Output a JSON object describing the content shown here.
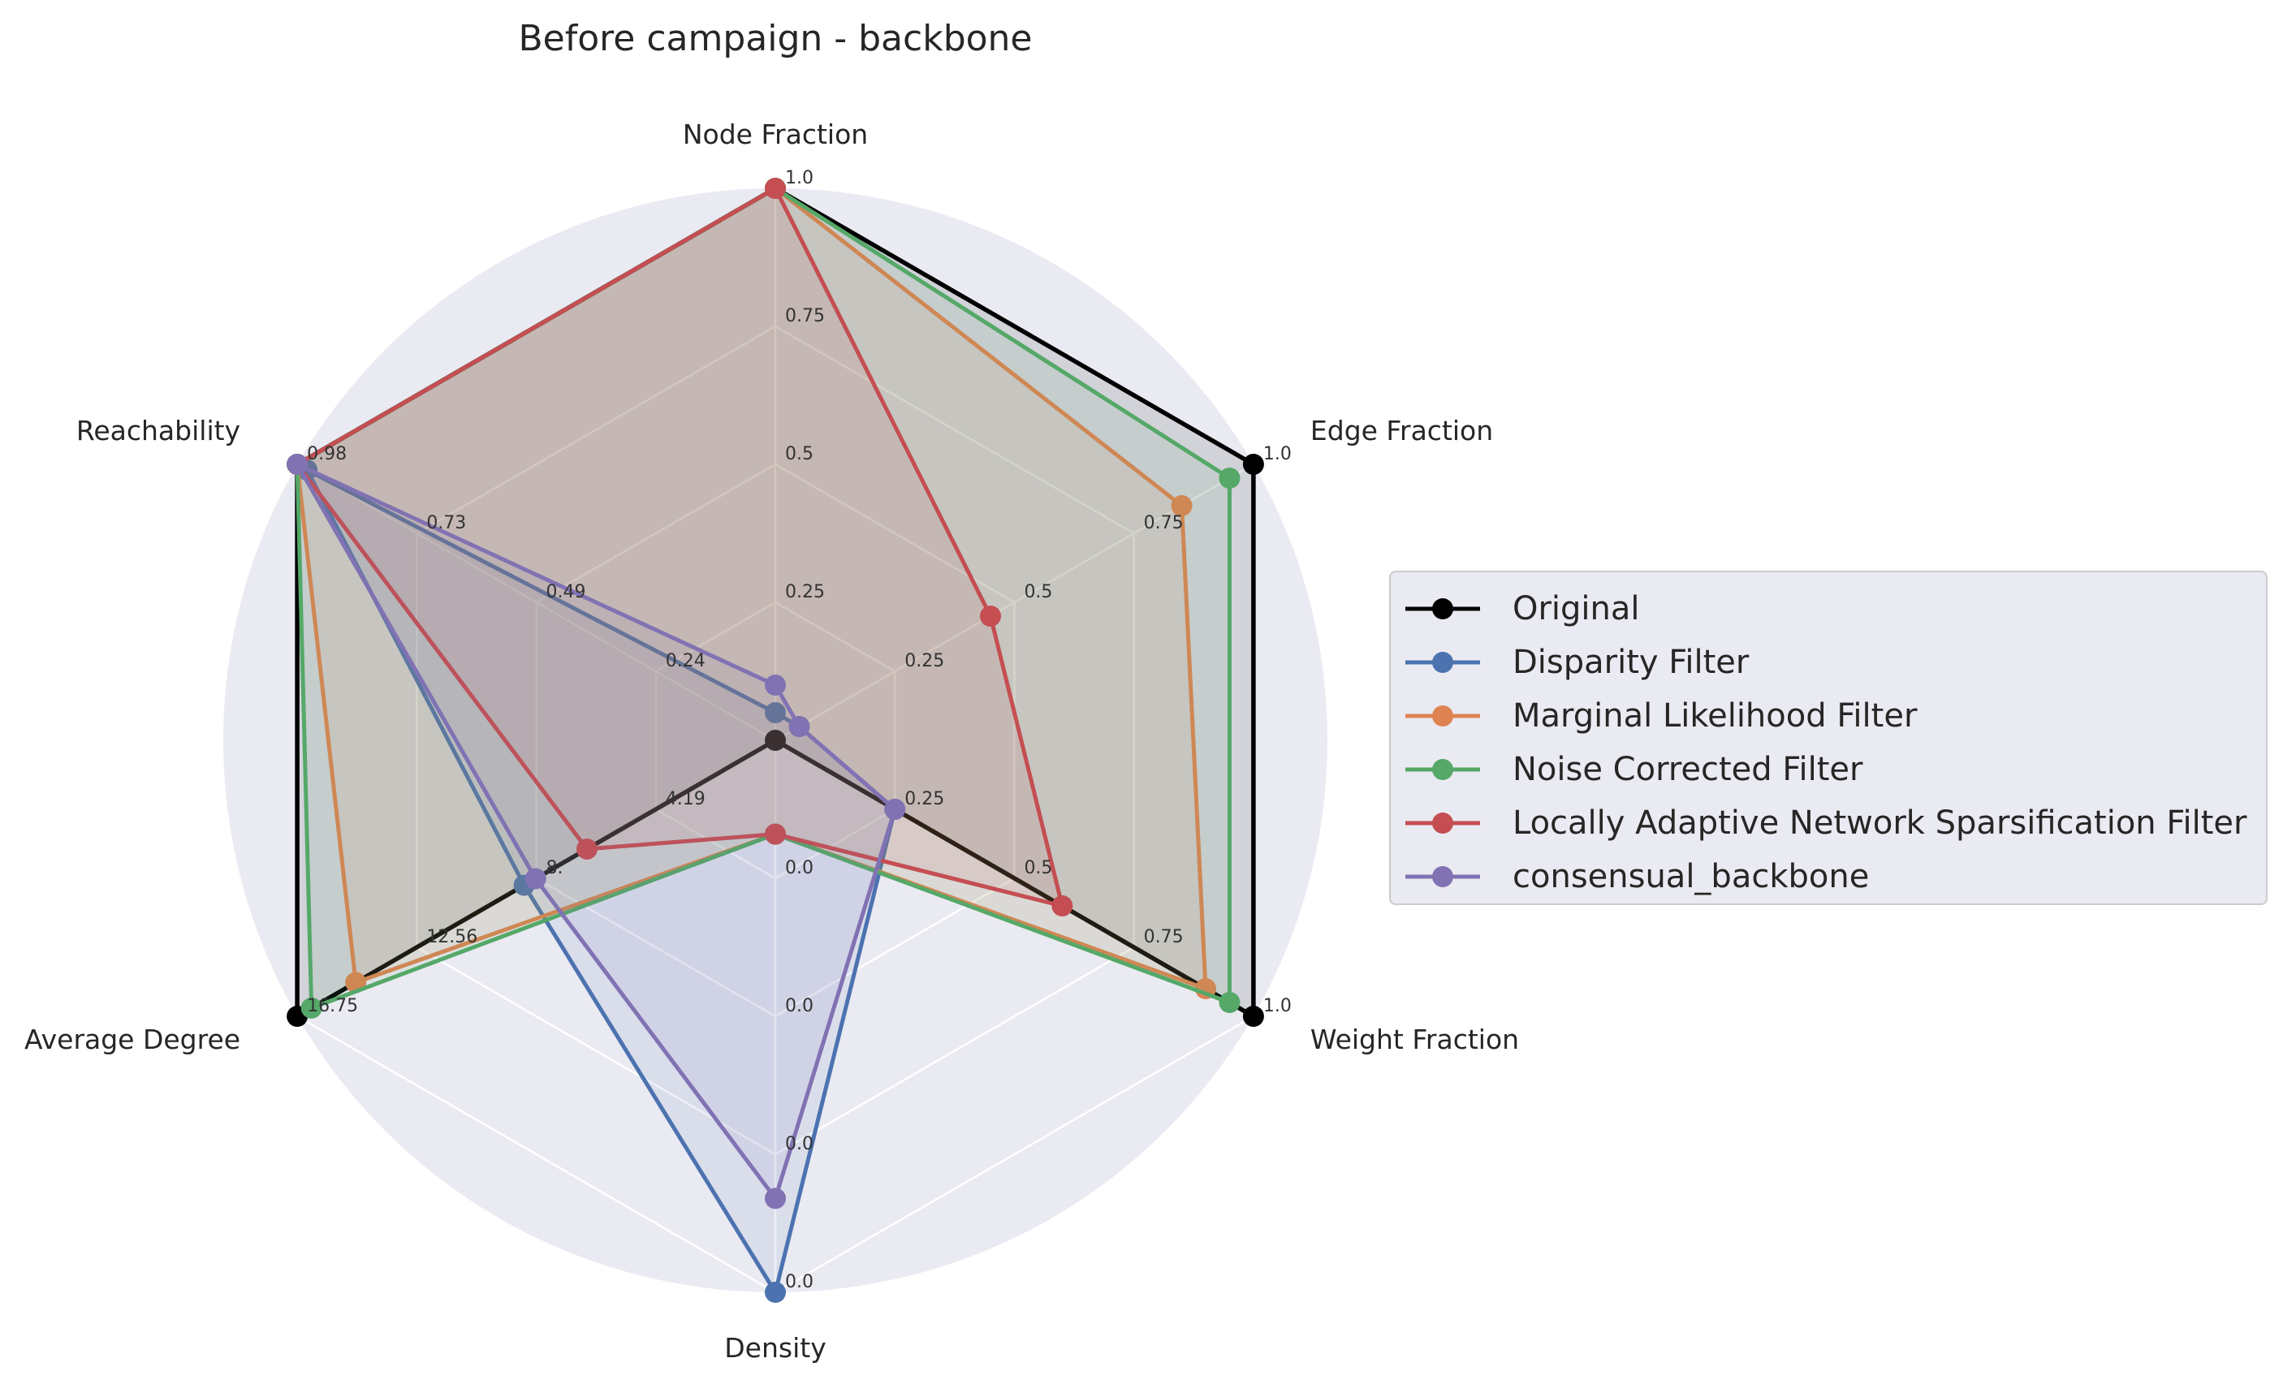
{
  "chart_data": {
    "type": "radar",
    "title": "Before campaign - backbone",
    "axes": [
      {
        "label": "Node Fraction",
        "ticks": [
          "1.0",
          "0.75",
          "0.5",
          "0.25"
        ],
        "max": 1.0
      },
      {
        "label": "Edge Fraction",
        "ticks": [
          "1.0",
          "0.75",
          "0.5",
          "0.25"
        ],
        "max": 1.0
      },
      {
        "label": "Weight Fraction",
        "ticks": [
          "1.0",
          "0.75",
          "0.5",
          "0.25"
        ],
        "max": 1.0
      },
      {
        "label": "Density",
        "ticks": [
          "0.0",
          "0.0",
          "0.0",
          "0.0"
        ],
        "max": 1.0
      },
      {
        "label": "Average Degree",
        "ticks": [
          "16.75",
          "12.56",
          "8.",
          "4.19"
        ],
        "max": 16.75
      },
      {
        "label": "Reachability",
        "ticks": [
          "0.98",
          "0.73",
          "0.49",
          "0.24"
        ],
        "max": 0.98
      }
    ],
    "series": [
      {
        "name": "Original",
        "color": "#000000",
        "marker": "circle",
        "values": [
          1.0,
          1.0,
          1.0,
          0.0,
          16.75,
          0.98
        ]
      },
      {
        "name": "Disparity Filter",
        "color": "#4c72b0",
        "marker": "circle",
        "values": [
          0.05,
          0.05,
          0.25,
          1.0,
          8.8,
          0.96
        ]
      },
      {
        "name": "Marginal Likelihood Filter",
        "color": "#dd8452",
        "marker": "circle",
        "values": [
          1.0,
          0.85,
          0.9,
          0.17,
          14.7,
          0.98
        ]
      },
      {
        "name": "Noise Corrected Filter",
        "color": "#55a868",
        "marker": "circle",
        "values": [
          1.0,
          0.95,
          0.95,
          0.17,
          16.25,
          0.98
        ]
      },
      {
        "name": "Locally Adaptive Network Sparsification Filter",
        "color": "#c44e52",
        "marker": "circle",
        "values": [
          1.0,
          0.45,
          0.6,
          0.17,
          6.6,
          0.98
        ]
      },
      {
        "name": "consensual_backbone",
        "color": "#8172b3",
        "marker": "circle",
        "values": [
          0.1,
          0.05,
          0.25,
          0.83,
          8.4,
          0.98
        ]
      }
    ],
    "grid": true,
    "legend_placement": "right"
  }
}
